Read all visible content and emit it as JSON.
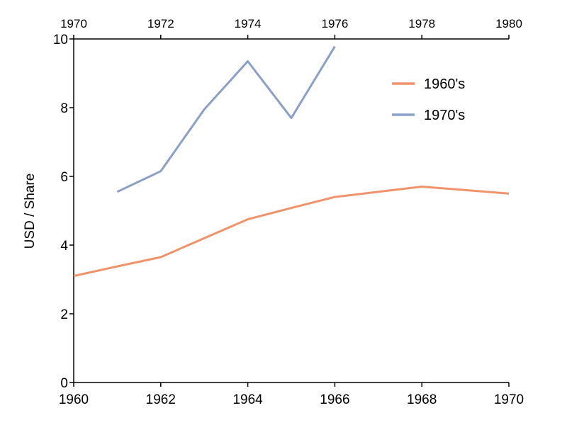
{
  "chart_data": {
    "type": "line",
    "title": "",
    "ylabel": "USD / Share",
    "ylim": [
      0,
      10
    ],
    "yticks": [
      "0",
      "2",
      "4",
      "6",
      "8",
      "10"
    ],
    "x_bottom": {
      "range": [
        1960,
        1970
      ],
      "ticks": [
        "1960",
        "1962",
        "1964",
        "1966",
        "1968",
        "1970"
      ]
    },
    "x_top": {
      "range": [
        1970,
        1980
      ],
      "ticks": [
        "1970",
        "1972",
        "1974",
        "1976",
        "1978",
        "1980"
      ]
    },
    "legend_position": "top-right",
    "grid": false,
    "series": [
      {
        "name": "1960's",
        "axis": "bottom",
        "color": "#f0926a",
        "x": [
          1960,
          1961,
          1962,
          1963,
          1964,
          1965,
          1966,
          1967,
          1968,
          1969,
          1970
        ],
        "y": [
          3.1,
          3.38,
          3.65,
          4.2,
          4.75,
          5.08,
          5.4,
          5.55,
          5.7,
          5.6,
          5.5
        ]
      },
      {
        "name": "1970's",
        "axis": "top",
        "color": "#8aa0c8",
        "x": [
          1971,
          1972,
          1973,
          1974,
          1975,
          1976
        ],
        "y": [
          5.55,
          6.15,
          7.95,
          9.35,
          7.7,
          9.78
        ]
      }
    ]
  }
}
